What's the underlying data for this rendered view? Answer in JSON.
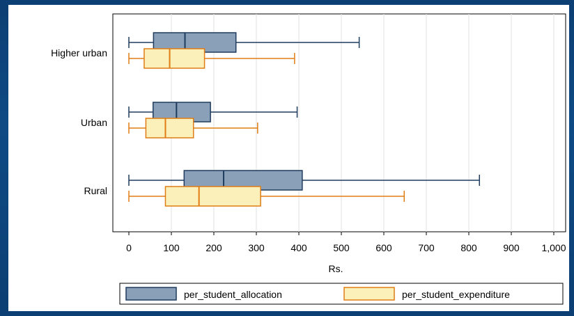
{
  "chart_data": {
    "type": "box",
    "orientation": "horizontal",
    "xlabel": "Rs.",
    "xlim": [
      0,
      1000
    ],
    "xticks": [
      0,
      100,
      200,
      300,
      400,
      500,
      600,
      700,
      800,
      900,
      1000
    ],
    "xtick_labels": [
      "0",
      "100",
      "200",
      "300",
      "400",
      "500",
      "600",
      "700",
      "800",
      "900",
      "1,000"
    ],
    "grid": true,
    "legend_position": "bottom",
    "categories": [
      "Higher urban",
      "Urban",
      "Rural"
    ],
    "series": [
      {
        "name": "per_student_allocation",
        "color": "#8a9fb8",
        "stroke": "#1f3c5e",
        "boxes": [
          {
            "category": "Higher urban",
            "min": 0,
            "q1": 58,
            "median": 132,
            "q3": 252,
            "max": 542
          },
          {
            "category": "Urban",
            "min": 0,
            "q1": 57,
            "median": 112,
            "q3": 192,
            "max": 396
          },
          {
            "category": "Rural",
            "min": 0,
            "q1": 130,
            "median": 223,
            "q3": 408,
            "max": 825
          }
        ]
      },
      {
        "name": "per_student_expenditure",
        "color": "#fbf0b9",
        "stroke": "#e07c14",
        "boxes": [
          {
            "category": "Higher urban",
            "min": 0,
            "q1": 36,
            "median": 96,
            "q3": 178,
            "max": 390
          },
          {
            "category": "Urban",
            "min": 0,
            "q1": 40,
            "median": 86,
            "q3": 152,
            "max": 303
          },
          {
            "category": "Rural",
            "min": 0,
            "q1": 86,
            "median": 165,
            "q3": 310,
            "max": 648
          }
        ]
      }
    ]
  }
}
